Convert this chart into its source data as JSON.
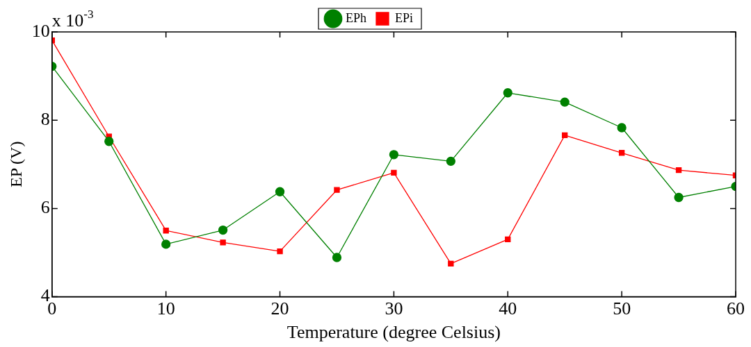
{
  "chart_data": {
    "type": "line",
    "xlabel": "Temperature (degree Celsius)",
    "ylabel": "EP (V)",
    "annotations": [
      "x 10$^{-3}$"
    ],
    "x": [
      0,
      5,
      10,
      15,
      20,
      25,
      30,
      35,
      40,
      45,
      50,
      55,
      60
    ],
    "series": [
      {
        "name": "EPh",
        "color": "#008000",
        "marker": "circle",
        "values": [
          9.22,
          7.52,
          5.19,
          5.51,
          6.38,
          4.89,
          7.22,
          7.07,
          8.62,
          8.41,
          7.83,
          6.25,
          6.5
        ]
      },
      {
        "name": "EPi",
        "color": "#ff0000",
        "marker": "square",
        "values": [
          9.81,
          7.63,
          5.5,
          5.23,
          5.03,
          6.42,
          6.81,
          4.75,
          5.3,
          7.66,
          7.26,
          6.87,
          6.75
        ]
      }
    ],
    "xlim": [
      0,
      60
    ],
    "xticks": [
      0,
      10,
      20,
      30,
      40,
      50,
      60
    ],
    "ylim": [
      4,
      10
    ],
    "yticks": [
      4,
      6,
      8,
      10
    ],
    "grid": false,
    "legend": "top",
    "line_style": "solid"
  }
}
